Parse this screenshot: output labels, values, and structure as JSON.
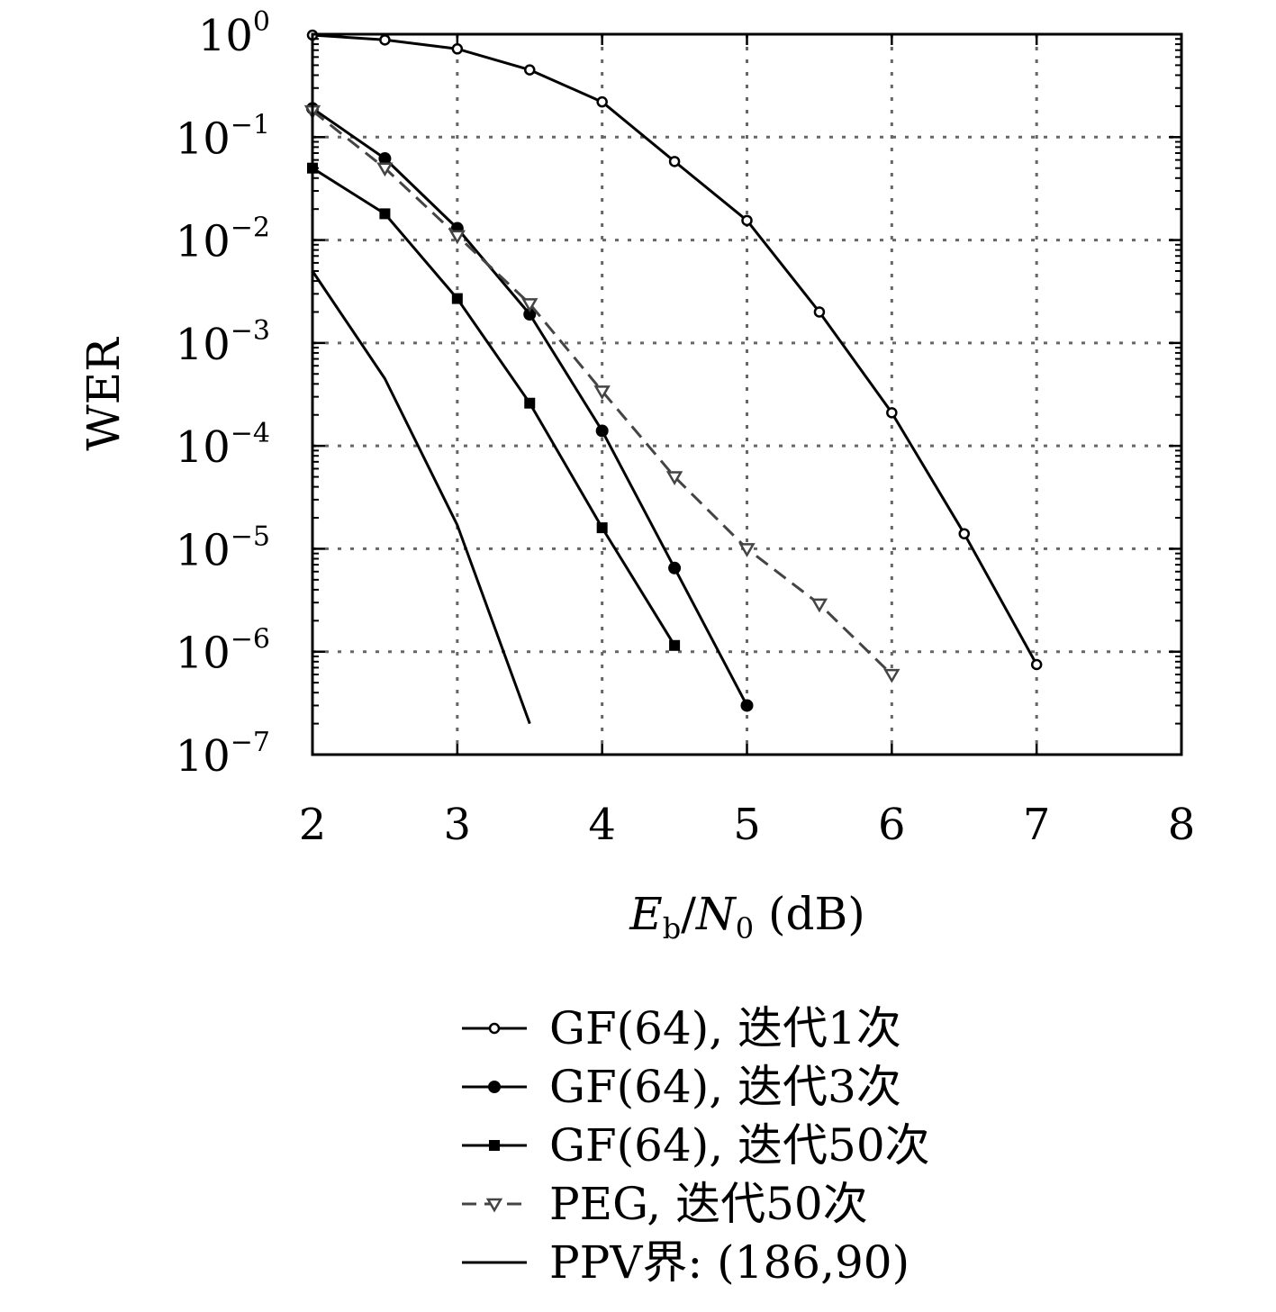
{
  "chart_data": {
    "type": "line",
    "title": "",
    "xlabel": {
      "main": "E",
      "sub": "b",
      "sep": "/",
      "main2": "N",
      "sub2": "0",
      "unit": " (dB)"
    },
    "ylabel": "WER",
    "xlim": [
      2,
      8
    ],
    "ylim": [
      1e-07,
      1
    ],
    "y_scale": "log",
    "grid": true,
    "legend_position": "bottom-outside",
    "x_ticks": [
      "2",
      "3",
      "4",
      "5",
      "6",
      "7",
      "8"
    ],
    "y_ticks": [
      {
        "base": "10",
        "exp": "0"
      },
      {
        "base": "10",
        "exp": "−1"
      },
      {
        "base": "10",
        "exp": "−2"
      },
      {
        "base": "10",
        "exp": "−3"
      },
      {
        "base": "10",
        "exp": "−4"
      },
      {
        "base": "10",
        "exp": "−5"
      },
      {
        "base": "10",
        "exp": "−6"
      },
      {
        "base": "10",
        "exp": "−7"
      }
    ],
    "series": [
      {
        "name": "GF(64), 迭代1次",
        "marker": "open-circle",
        "line": "solid",
        "color": "#000000",
        "x": [
          2,
          2.5,
          3,
          3.5,
          4,
          4.5,
          5,
          5.5,
          6,
          6.5,
          7
        ],
        "y": [
          0.98,
          0.88,
          0.72,
          0.45,
          0.22,
          0.058,
          0.0155,
          0.002,
          0.00021,
          1.4e-05,
          7.5e-07
        ]
      },
      {
        "name": "GF(64), 迭代3次",
        "marker": "filled-circle",
        "line": "solid",
        "color": "#000000",
        "x": [
          2,
          2.5,
          3,
          3.5,
          4,
          4.5,
          5
        ],
        "y": [
          0.19,
          0.062,
          0.013,
          0.0019,
          0.00014,
          6.5e-06,
          3e-07
        ]
      },
      {
        "name": "GF(64), 迭代50次",
        "marker": "filled-square",
        "line": "solid",
        "color": "#000000",
        "x": [
          2,
          2.5,
          3,
          3.5,
          4,
          4.5
        ],
        "y": [
          0.05,
          0.018,
          0.0027,
          0.00026,
          1.6e-05,
          1.15e-06
        ]
      },
      {
        "name": "PEG, 迭代50次",
        "marker": "open-triangle-down",
        "line": "dashed",
        "color": "#444444",
        "x": [
          2,
          2.5,
          3,
          3.5,
          4,
          4.5,
          5,
          5.5,
          6
        ],
        "y": [
          0.18,
          0.05,
          0.011,
          0.0024,
          0.00034,
          5e-05,
          1e-05,
          2.9e-06,
          6e-07
        ]
      },
      {
        "name": "PPV界: (186,90)",
        "marker": "none",
        "line": "solid",
        "color": "#000000",
        "x": [
          2,
          2.5,
          3,
          3.5
        ],
        "y": [
          0.005,
          0.00045,
          1.7e-05,
          2e-07
        ]
      }
    ]
  }
}
